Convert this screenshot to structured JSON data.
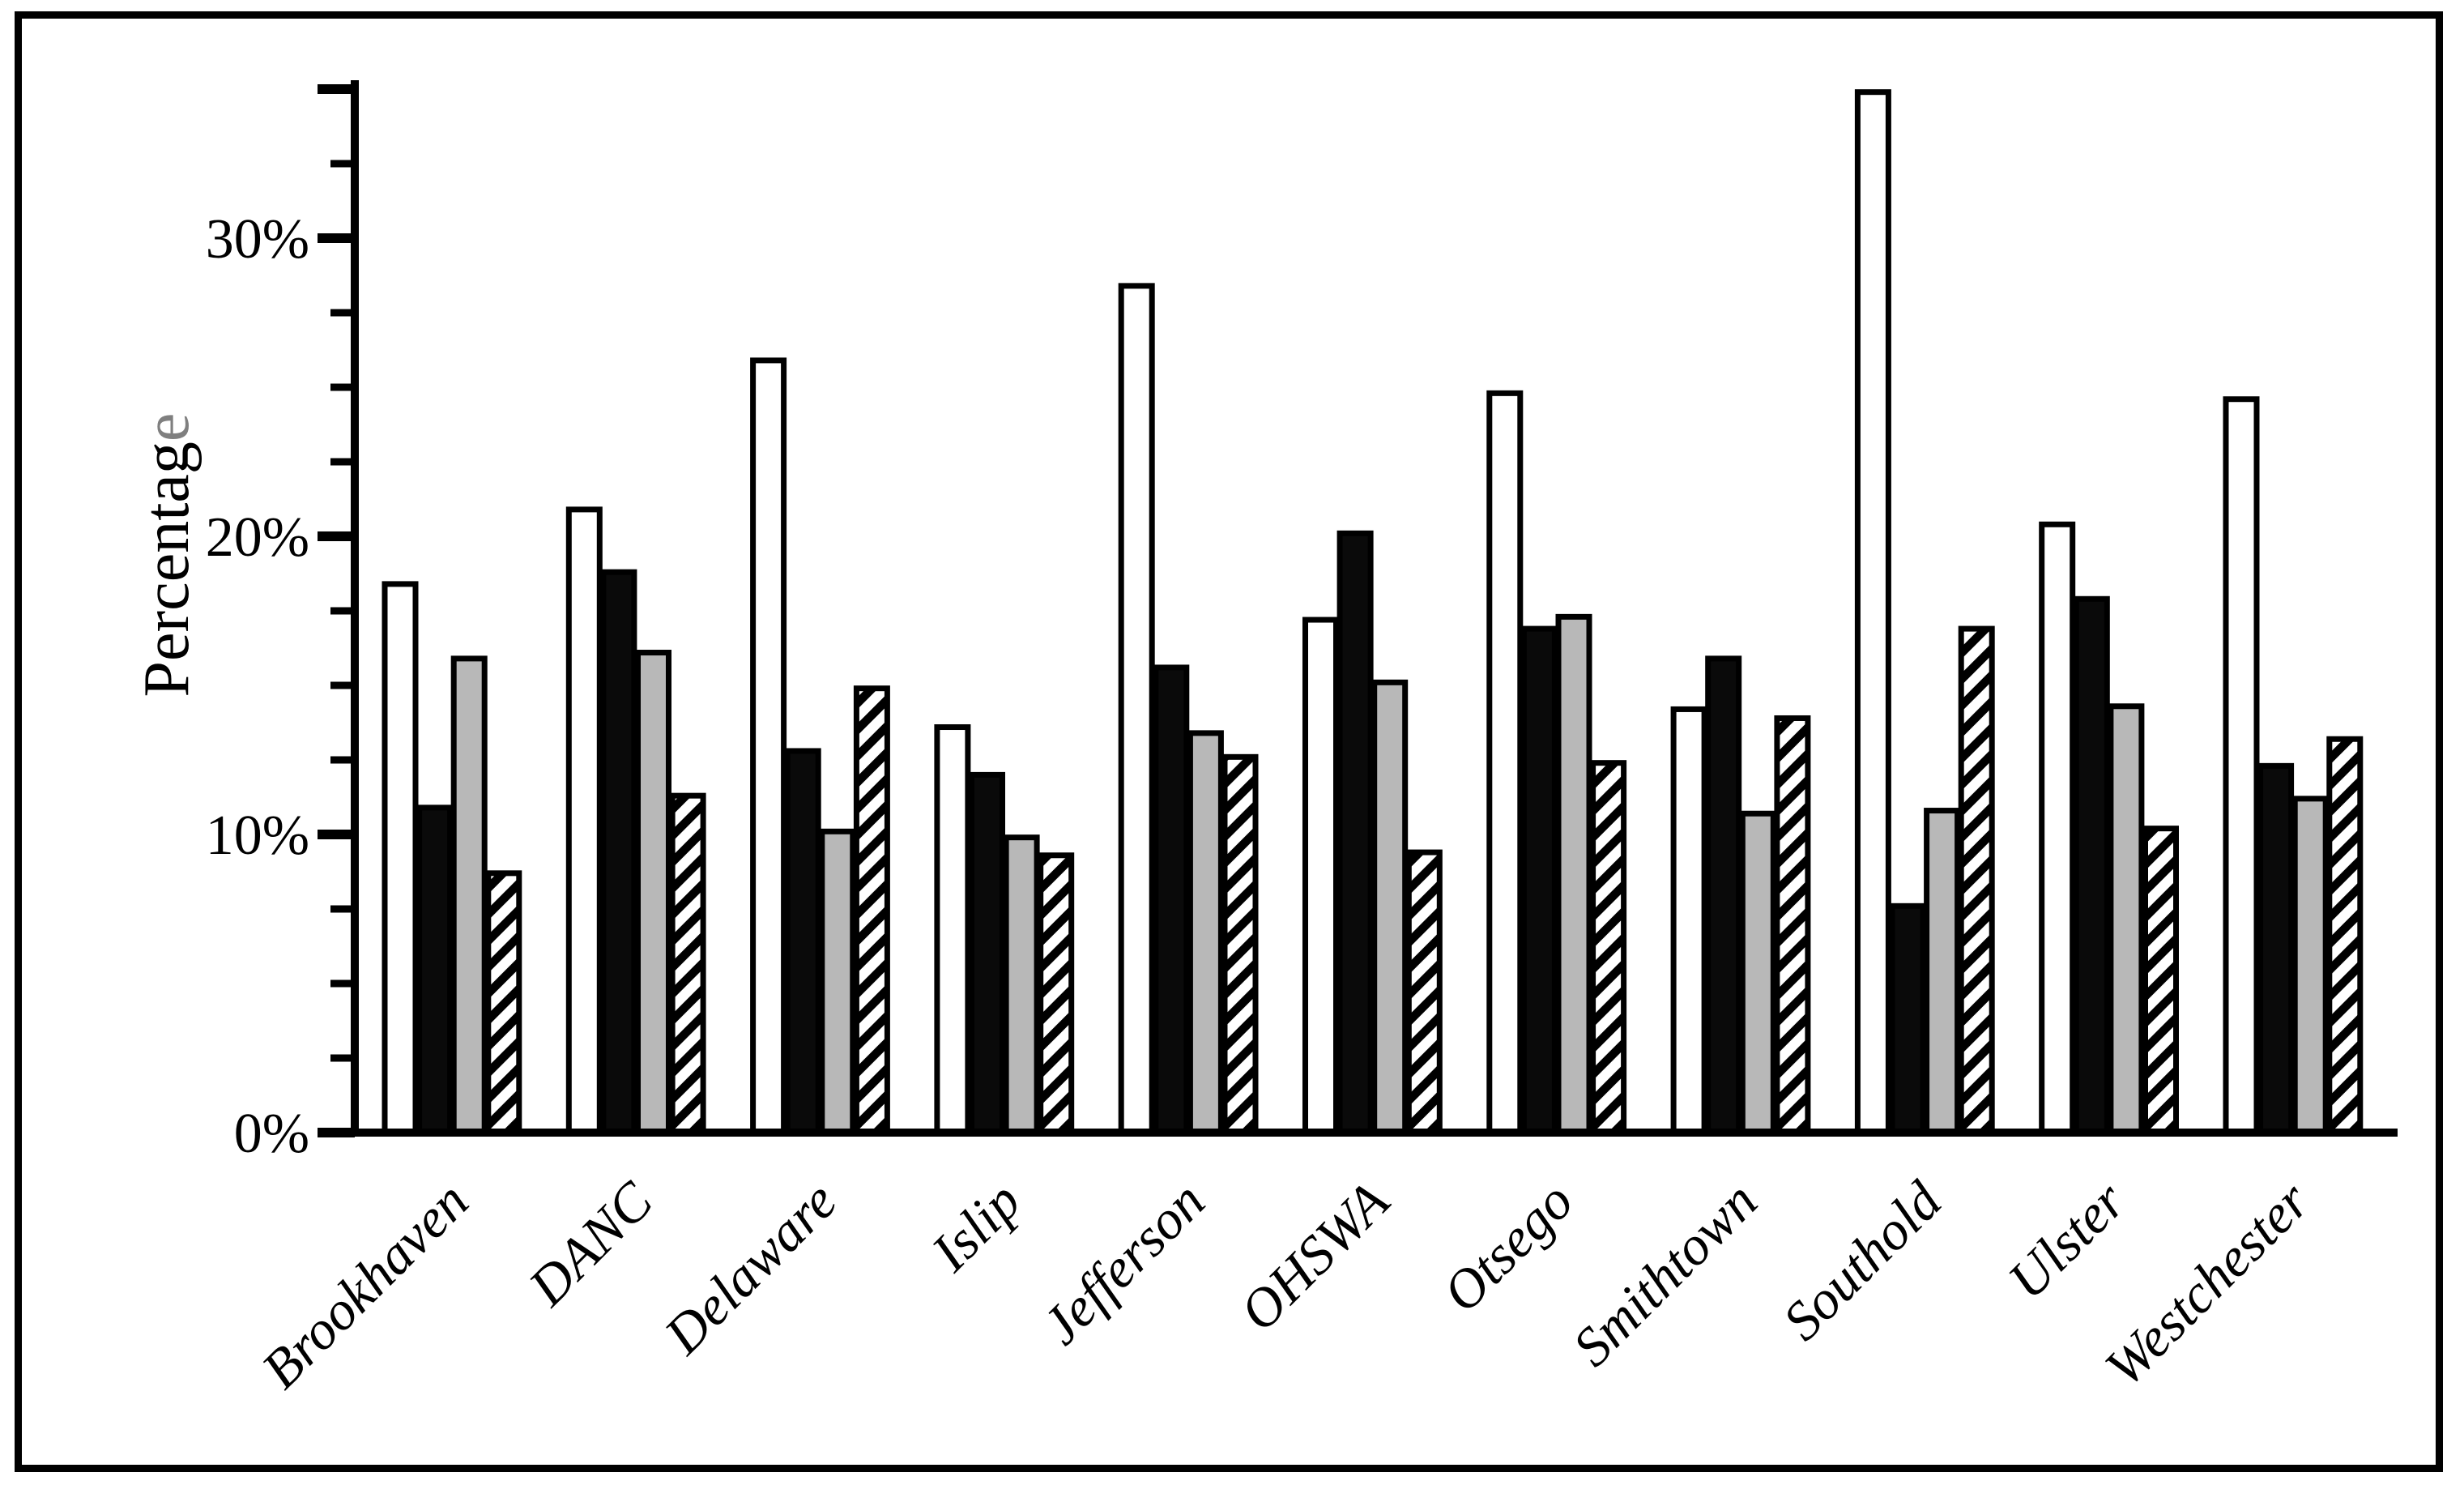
{
  "figure": {
    "background": "#ffffff",
    "border_color": "#000000"
  },
  "chart_data": {
    "type": "bar",
    "title": "",
    "xlabel": "",
    "ylabel": "Percentage",
    "ylabel_last_char_gray": true,
    "categories": [
      "Brookhaven",
      "DANC",
      "Delaware",
      "Islip",
      "Jefferson",
      "OHSWA",
      "Otsego",
      "Smithtown",
      "Southold",
      "Ulster",
      "Westchester"
    ],
    "series": [
      {
        "name": "series-1-white",
        "style": "white",
        "values": [
          18.4,
          20.9,
          25.9,
          13.6,
          28.4,
          17.2,
          24.8,
          14.2,
          34.9,
          20.4,
          24.6
        ]
      },
      {
        "name": "series-2-black",
        "style": "black",
        "values": [
          10.9,
          18.8,
          12.8,
          12.0,
          15.6,
          20.1,
          16.9,
          15.9,
          7.6,
          17.9,
          12.3
        ]
      },
      {
        "name": "series-3-gray",
        "style": "gray",
        "values": [
          15.9,
          16.1,
          10.1,
          9.9,
          13.4,
          15.1,
          17.3,
          10.7,
          10.8,
          14.3,
          11.2
        ]
      },
      {
        "name": "series-4-hatched",
        "style": "hatched",
        "values": [
          8.7,
          11.3,
          14.9,
          9.3,
          12.6,
          9.4,
          12.4,
          13.9,
          16.9,
          10.2,
          13.2
        ]
      }
    ],
    "y_axis": {
      "tick_labels": [
        "0%",
        "10%",
        "20%",
        "30%"
      ],
      "tick_values": [
        0,
        10,
        20,
        30
      ],
      "minor_tick_step": 2.5,
      "ylim": [
        0,
        35
      ]
    },
    "x_tick_rotation_deg": 45,
    "grid": false,
    "legend": "none",
    "colors": {
      "axis": "#000000",
      "bar_outline": "#000000",
      "white_fill": "#ffffff",
      "black_fill": "#0a0a0a",
      "gray_fill": "#b8b8b8",
      "hatch_stripe": "#000000",
      "ylabel_gray_char": "#7f7f7f",
      "text": "#000000"
    }
  }
}
